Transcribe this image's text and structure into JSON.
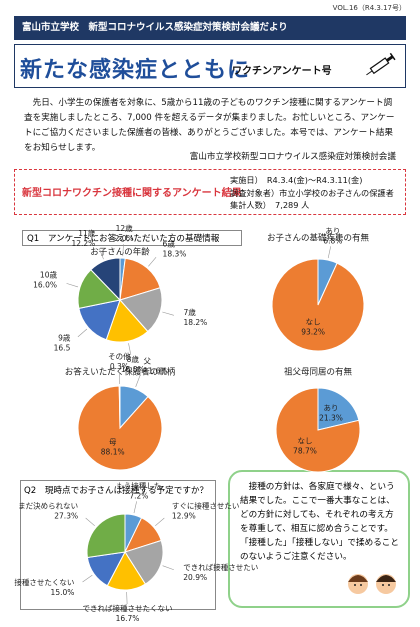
{
  "header": {
    "volume": "VOL.16（R4.3.17号）",
    "org_line": "富山市立学校　新型コロナウイルス感染症対策検討会議だより",
    "title": "新たな感染症とともに",
    "subtitle": "ワクチンアンケート号"
  },
  "intro": {
    "text": "先日、小学生の保護者を対象に、5歳から11歳の子どものワクチン接種に関するアンケート調査を実施しましたところ、7,000 件を超えるデータが集まりました。お忙しいところ、アンケートにご協力くださいました保護者の皆様、ありがとうございました。本号では、アンケート結果をお知らせします。",
    "signature": "富山市立学校新型コロナウイルス感染症対策検討会議"
  },
  "results_box": {
    "title": "新型コロナワクチン接種に関するアンケート結果",
    "details": [
      "実施日）　R4.3.4(金)～R4.3.11(金)",
      "調査対象者）市立小学校のお子さんの保護者",
      "集計人数）　7,289 人"
    ]
  },
  "q1": {
    "heading": "Q1　アンケートにお答えいただいた方の基礎情報",
    "charts": [
      {
        "type": "pie",
        "title": "お子さんの年齢",
        "categories": [
          "12歳",
          "6歳",
          "7歳",
          "8歳",
          "9歳",
          "10歳",
          "11歳"
        ],
        "values": [
          2.0,
          18.3,
          18.2,
          16.8,
          16.5,
          16.0,
          12.2
        ],
        "value_labels": [
          "2.0%",
          "18.3%",
          "18.2%",
          "16.8%",
          "16.5",
          "16.0%",
          "12.2%"
        ],
        "colors": [
          "#5b9bd5",
          "#ed7d31",
          "#a5a5a5",
          "#ffc000",
          "#4472c4",
          "#70ad47",
          "#264478"
        ]
      },
      {
        "type": "pie",
        "title": "お子さんの基礎疾患の有無",
        "categories": [
          "あり",
          "なし"
        ],
        "values": [
          6.8,
          93.2
        ],
        "value_labels": [
          "6.8%",
          "93.2%"
        ],
        "colors": [
          "#5b9bd5",
          "#ed7d31"
        ]
      },
      {
        "type": "pie",
        "title": "お答えいただく保護者の続柄",
        "categories": [
          "父",
          "母",
          "その他"
        ],
        "values": [
          11.6,
          88.1,
          0.3
        ],
        "value_labels": [
          "11.6%",
          "88.1%",
          "0.3%"
        ],
        "colors": [
          "#5b9bd5",
          "#ed7d31",
          "#a5a5a5"
        ]
      },
      {
        "type": "pie",
        "title": "祖父母同居の有無",
        "categories": [
          "あり",
          "なし"
        ],
        "values": [
          21.3,
          78.7
        ],
        "value_labels": [
          "21.3%",
          "78.7%"
        ],
        "colors": [
          "#5b9bd5",
          "#ed7d31"
        ]
      }
    ]
  },
  "q2": {
    "heading": "Q2　現時点でお子さんは接種する予定ですか？",
    "chart": {
      "type": "pie",
      "categories": [
        "もう接種した",
        "すぐに接種させたい",
        "できれば接種させたい",
        "できれば接種させたくない",
        "接種させたくない",
        "まだ決められない"
      ],
      "values": [
        7.2,
        12.9,
        20.9,
        16.7,
        15.0,
        27.3
      ],
      "value_labels": [
        "7.2%",
        "12.9%",
        "20.9%",
        "16.7%",
        "15.0%",
        "27.3%"
      ],
      "colors": [
        "#5b9bd5",
        "#ed7d31",
        "#a5a5a5",
        "#ffc000",
        "#4472c4",
        "#70ad47"
      ]
    }
  },
  "note": {
    "text": "接種の方針は、各家庭で様々、という結果でした。ここで一番大事なことは、どの方針に対しても、それぞれの考え方を尊重して、相互に認め合うことです。「接種した」「接種しない」で揉めることのないようご注意ください。"
  }
}
